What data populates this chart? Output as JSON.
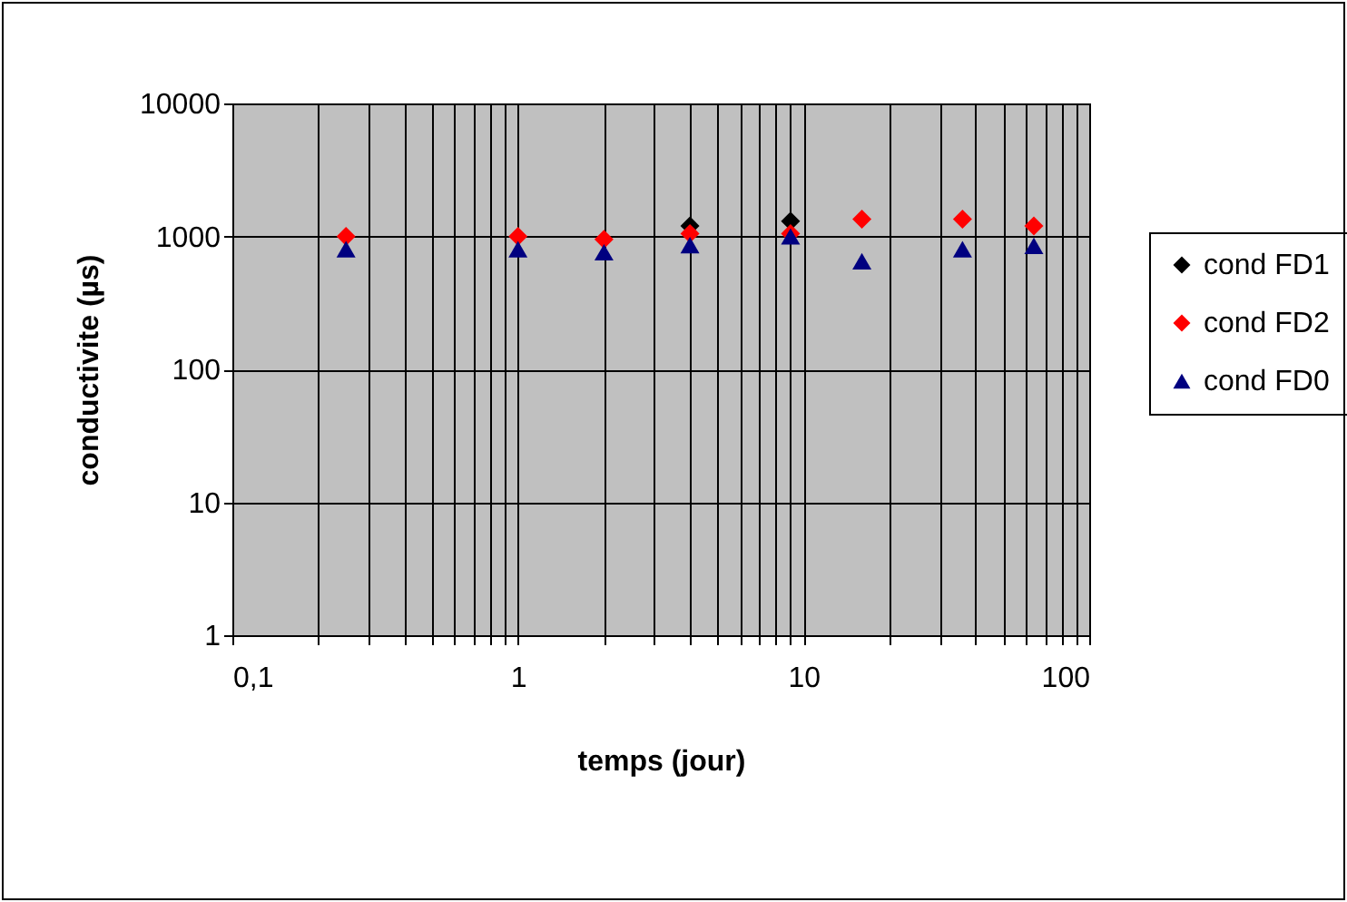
{
  "chart_data": {
    "type": "scatter",
    "xlabel": "temps (jour)",
    "ylabel": "conductivite (µs)",
    "x": [
      0.25,
      1,
      2,
      4,
      9,
      16,
      36,
      64
    ],
    "series": [
      {
        "name": "cond FD1",
        "color": "#000000",
        "marker": "diamond",
        "values": [
          null,
          null,
          null,
          1200,
          1300,
          null,
          null,
          null
        ]
      },
      {
        "name": "cond FD2",
        "color": "#ff0000",
        "marker": "diamond",
        "values": [
          1000,
          1000,
          950,
          1050,
          1050,
          1350,
          1350,
          1200
        ]
      },
      {
        "name": "cond FD0",
        "color": "#000080",
        "marker": "triangle",
        "values": [
          800,
          800,
          760,
          860,
          1000,
          650,
          800,
          850
        ]
      }
    ],
    "log": "xy",
    "xlim": [
      0.1,
      100
    ],
    "ylim": [
      1,
      10000
    ],
    "xticks": [
      {
        "value": 0.1,
        "label": "0,1"
      },
      {
        "value": 0.2,
        "label": null
      },
      {
        "value": 0.3,
        "label": null
      },
      {
        "value": 0.4,
        "label": null
      },
      {
        "value": 0.5,
        "label": null
      },
      {
        "value": 0.6,
        "label": null
      },
      {
        "value": 0.7,
        "label": null
      },
      {
        "value": 0.8,
        "label": null
      },
      {
        "value": 0.9,
        "label": null
      },
      1,
      {
        "value": 2,
        "label": null
      },
      {
        "value": 3,
        "label": null
      },
      {
        "value": 4,
        "label": null
      },
      {
        "value": 5,
        "label": null
      },
      {
        "value": 6,
        "label": null
      },
      {
        "value": 7,
        "label": null
      },
      {
        "value": 8,
        "label": null
      },
      {
        "value": 9,
        "label": null
      },
      10,
      {
        "value": 20,
        "label": null
      },
      {
        "value": 30,
        "label": null
      },
      {
        "value": 40,
        "label": null
      },
      {
        "value": 50,
        "label": null
      },
      {
        "value": 60,
        "label": null
      },
      {
        "value": 70,
        "label": null
      },
      {
        "value": 80,
        "label": null
      },
      {
        "value": 90,
        "label": null
      },
      100
    ],
    "yticks": [
      1,
      10,
      100,
      1000,
      10000
    ],
    "grid": true,
    "legend": "right"
  }
}
